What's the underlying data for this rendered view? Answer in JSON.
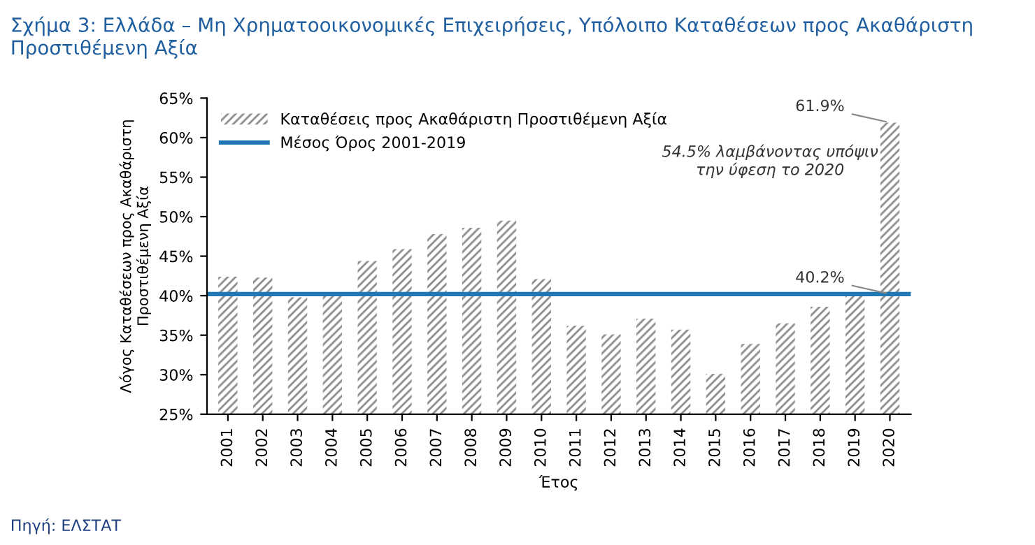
{
  "chart_data": {
    "type": "bar",
    "title": "Σχήμα 3: Ελλάδα – Μη Χρηματοοικονομικές Επιχειρήσεις, Υπόλοιπο Καταθέσεων προς Ακαθάριστη Προστιθέμενη Αξία",
    "xlabel": "Έτος",
    "ylabel": "Λόγος Καταθέσεων προς Ακαθάριστη Προστιθέμενη Αξία",
    "categories": [
      "2001",
      "2002",
      "2003",
      "2004",
      "2005",
      "2006",
      "2007",
      "2008",
      "2009",
      "2010",
      "2011",
      "2012",
      "2013",
      "2014",
      "2015",
      "2016",
      "2017",
      "2018",
      "2019",
      "2020"
    ],
    "series": [
      {
        "name": "Καταθέσεις προς Ακαθάριστη Προστιθέμενη Αξία",
        "color": "#8c8c8c",
        "values": [
          42.4,
          42.3,
          39.8,
          40.3,
          44.4,
          45.9,
          47.8,
          48.6,
          49.5,
          42.1,
          36.2,
          35.1,
          37.1,
          35.7,
          30.1,
          33.9,
          36.5,
          38.6,
          40.3,
          61.9
        ]
      }
    ],
    "ref_lines": [
      {
        "axis": "y",
        "value": 40.2,
        "label": "Μέσος Όρος 2001-2019",
        "color": "#1f77b4"
      }
    ],
    "annotations": [
      {
        "text": "61.9%",
        "x": "2020",
        "y": 61.9
      },
      {
        "text": "40.2%",
        "x": "2020",
        "y": 40.2
      },
      "54.5% λαμβάνοντας υπόψιν\nτην ύφεση το 2020",
      "Πηγή: ΕΛΣΤΑΤ"
    ],
    "ylim": [
      25,
      65
    ],
    "yticks": [
      {
        "value": 25,
        "label": "25%"
      },
      {
        "value": 30,
        "label": "30%"
      },
      {
        "value": 35,
        "label": "35%"
      },
      {
        "value": 40,
        "label": "40%"
      },
      {
        "value": 45,
        "label": "45%"
      },
      {
        "value": 50,
        "label": "50%"
      },
      {
        "value": 55,
        "label": "55%"
      },
      {
        "value": 60,
        "label": "60%"
      },
      {
        "value": 65,
        "label": "65%"
      }
    ],
    "grid": false,
    "legend": "top left"
  }
}
